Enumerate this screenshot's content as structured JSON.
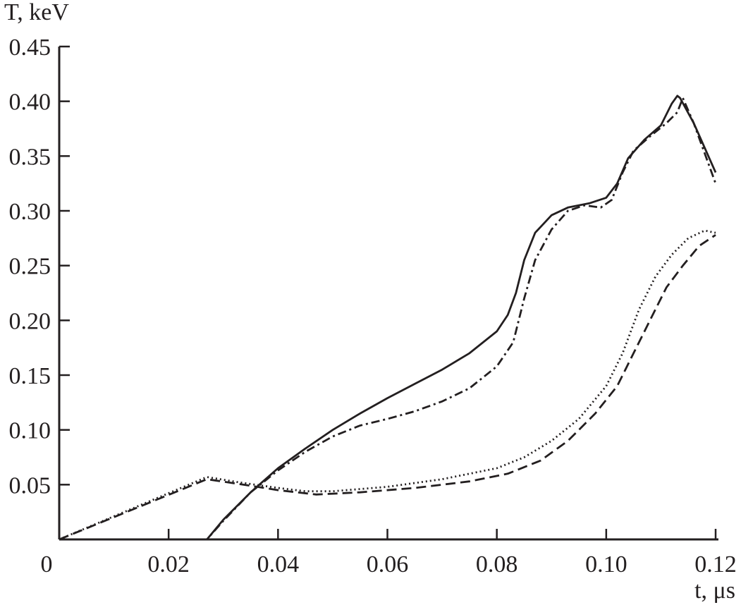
{
  "chart_data": {
    "type": "line",
    "title": "",
    "xlabel": "t, μs",
    "ylabel": "T, keV",
    "xlim": [
      0,
      0.12
    ],
    "ylim": [
      0,
      0.45
    ],
    "x_ticks": [
      "0",
      "0.02",
      "0.04",
      "0.06",
      "0.08",
      "0.10",
      "0.12"
    ],
    "x_tick_values": [
      0,
      0.02,
      0.04,
      0.06,
      0.08,
      0.1,
      0.12
    ],
    "y_ticks": [
      "0.05",
      "0.10",
      "0.15",
      "0.20",
      "0.25",
      "0.30",
      "0.35",
      "0.40",
      "0.45"
    ],
    "y_tick_values": [
      0.05,
      0.1,
      0.15,
      0.2,
      0.25,
      0.3,
      0.35,
      0.4,
      0.45
    ],
    "grid": false,
    "color": "#231f20",
    "series": [
      {
        "style": "solid",
        "points": [
          [
            0,
            0
          ],
          [
            0.027,
            0
          ],
          [
            0.03,
            0.018
          ],
          [
            0.035,
            0.043
          ],
          [
            0.04,
            0.065
          ],
          [
            0.045,
            0.083
          ],
          [
            0.05,
            0.1
          ],
          [
            0.055,
            0.115
          ],
          [
            0.06,
            0.129
          ],
          [
            0.065,
            0.142
          ],
          [
            0.07,
            0.155
          ],
          [
            0.075,
            0.17
          ],
          [
            0.08,
            0.19
          ],
          [
            0.082,
            0.205
          ],
          [
            0.0835,
            0.225
          ],
          [
            0.085,
            0.255
          ],
          [
            0.087,
            0.28
          ],
          [
            0.09,
            0.296
          ],
          [
            0.093,
            0.303
          ],
          [
            0.097,
            0.307
          ],
          [
            0.1,
            0.312
          ],
          [
            0.102,
            0.325
          ],
          [
            0.104,
            0.348
          ],
          [
            0.107,
            0.365
          ],
          [
            0.11,
            0.378
          ],
          [
            0.112,
            0.398
          ],
          [
            0.113,
            0.405
          ],
          [
            0.1135,
            0.403
          ],
          [
            0.116,
            0.38
          ],
          [
            0.12,
            0.335
          ]
        ]
      },
      {
        "style": "dash-dot",
        "points": [
          [
            0,
            0
          ],
          [
            0.027,
            0
          ],
          [
            0.03,
            0.017
          ],
          [
            0.035,
            0.043
          ],
          [
            0.04,
            0.063
          ],
          [
            0.045,
            0.08
          ],
          [
            0.05,
            0.094
          ],
          [
            0.055,
            0.104
          ],
          [
            0.06,
            0.11
          ],
          [
            0.065,
            0.117
          ],
          [
            0.07,
            0.126
          ],
          [
            0.075,
            0.138
          ],
          [
            0.08,
            0.158
          ],
          [
            0.083,
            0.18
          ],
          [
            0.085,
            0.22
          ],
          [
            0.087,
            0.255
          ],
          [
            0.09,
            0.283
          ],
          [
            0.093,
            0.3
          ],
          [
            0.096,
            0.305
          ],
          [
            0.099,
            0.303
          ],
          [
            0.101,
            0.31
          ],
          [
            0.103,
            0.335
          ],
          [
            0.105,
            0.355
          ],
          [
            0.108,
            0.368
          ],
          [
            0.111,
            0.38
          ],
          [
            0.113,
            0.39
          ],
          [
            0.114,
            0.403
          ],
          [
            0.116,
            0.38
          ],
          [
            0.12,
            0.325
          ]
        ]
      },
      {
        "style": "dotted",
        "points": [
          [
            0,
            0
          ],
          [
            0.027,
            0.057
          ],
          [
            0.033,
            0.052
          ],
          [
            0.04,
            0.047
          ],
          [
            0.045,
            0.044
          ],
          [
            0.05,
            0.044
          ],
          [
            0.06,
            0.048
          ],
          [
            0.07,
            0.055
          ],
          [
            0.08,
            0.065
          ],
          [
            0.085,
            0.075
          ],
          [
            0.09,
            0.09
          ],
          [
            0.095,
            0.11
          ],
          [
            0.1,
            0.14
          ],
          [
            0.103,
            0.17
          ],
          [
            0.106,
            0.21
          ],
          [
            0.109,
            0.24
          ],
          [
            0.112,
            0.26
          ],
          [
            0.115,
            0.275
          ],
          [
            0.118,
            0.282
          ],
          [
            0.12,
            0.28
          ]
        ]
      },
      {
        "style": "dashed",
        "points": [
          [
            0,
            0
          ],
          [
            0.027,
            0.055
          ],
          [
            0.035,
            0.049
          ],
          [
            0.04,
            0.045
          ],
          [
            0.047,
            0.041
          ],
          [
            0.055,
            0.043
          ],
          [
            0.065,
            0.047
          ],
          [
            0.075,
            0.053
          ],
          [
            0.082,
            0.06
          ],
          [
            0.088,
            0.072
          ],
          [
            0.093,
            0.09
          ],
          [
            0.098,
            0.115
          ],
          [
            0.102,
            0.14
          ],
          [
            0.105,
            0.17
          ],
          [
            0.108,
            0.2
          ],
          [
            0.111,
            0.23
          ],
          [
            0.114,
            0.25
          ],
          [
            0.117,
            0.268
          ],
          [
            0.12,
            0.278
          ]
        ]
      }
    ]
  }
}
